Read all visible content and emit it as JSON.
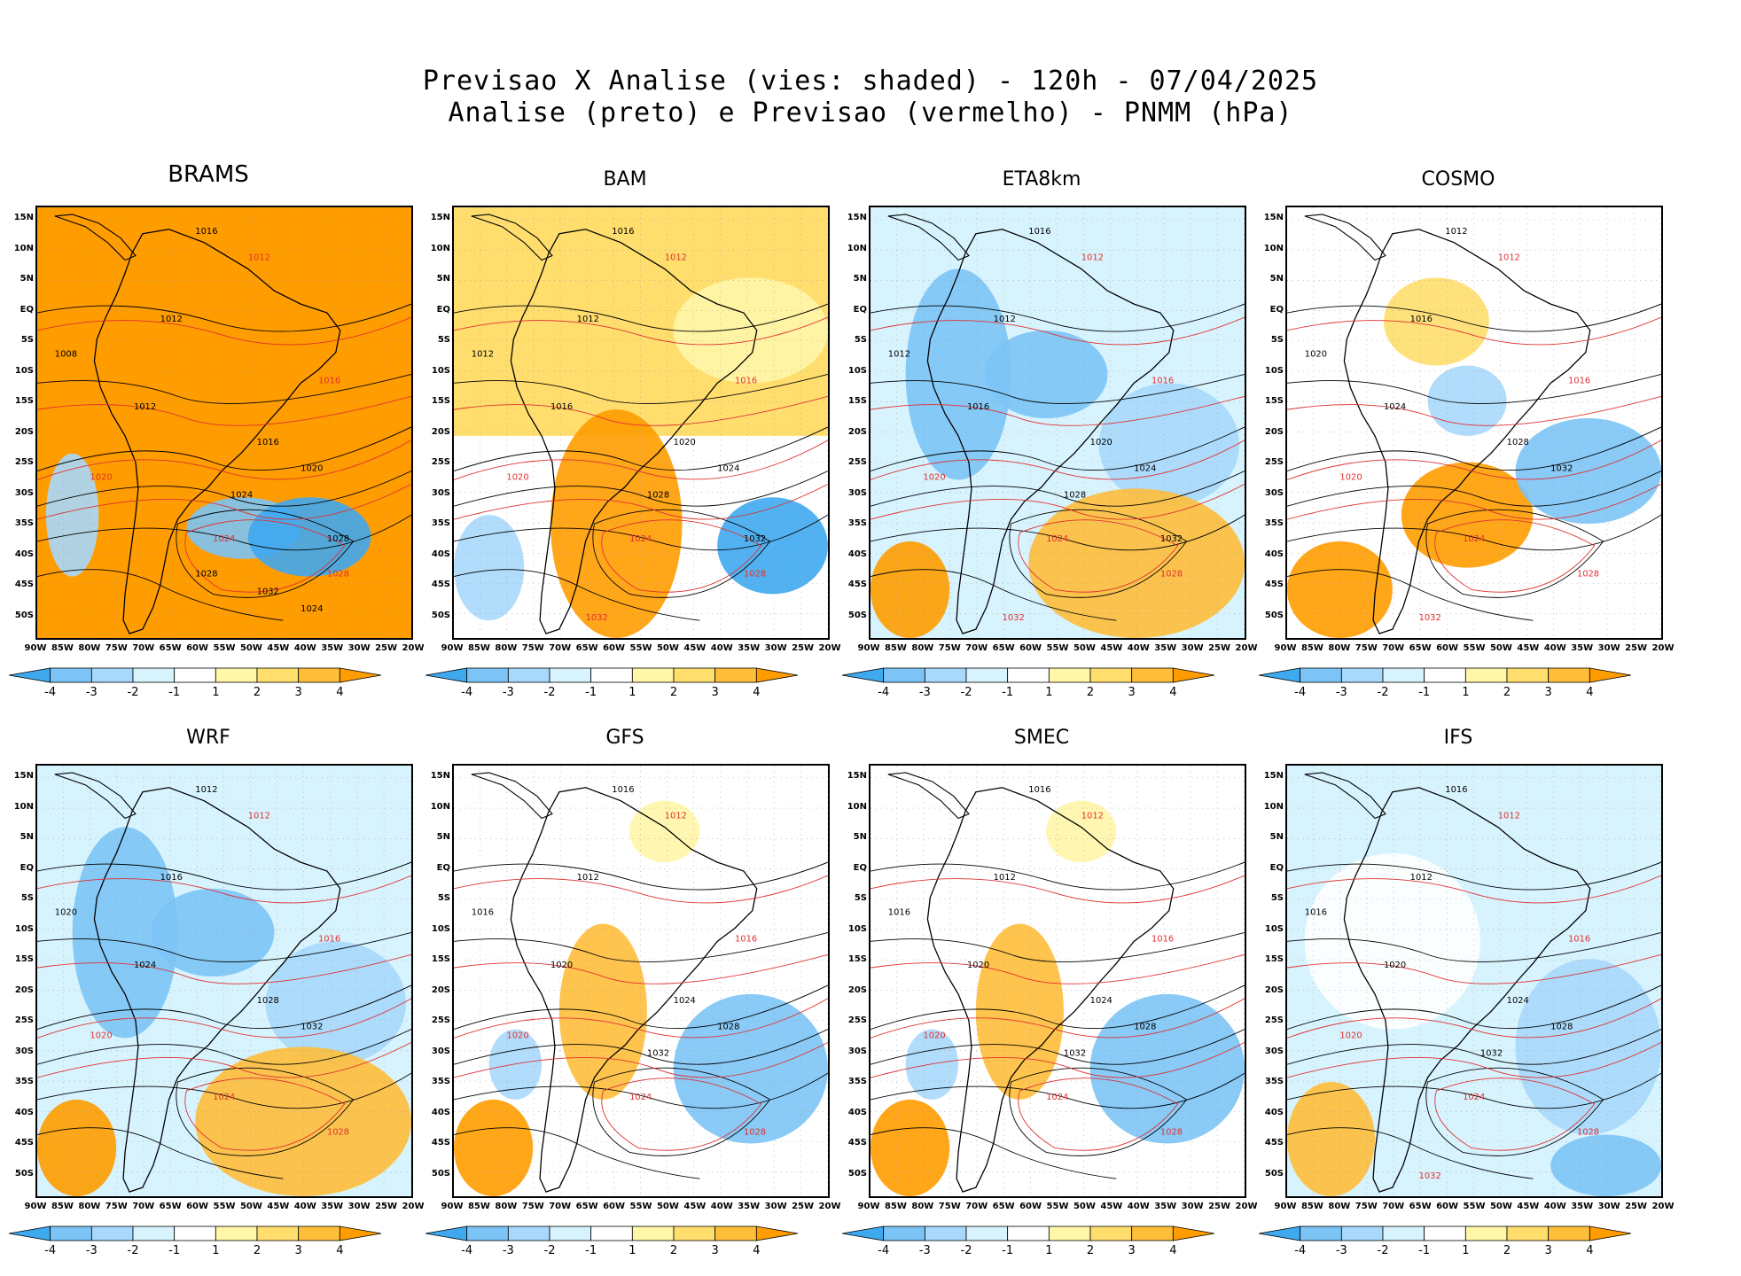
{
  "title": {
    "line1": "Previsao X Analise (vies: shaded) - 120h - 07/04/2025",
    "line2": "Analise (preto) e Previsao (vermelho) - PNMM (hPa)"
  },
  "lat_labels": [
    "15N",
    "10N",
    "5N",
    "EQ",
    "5S",
    "10S",
    "15S",
    "20S",
    "25S",
    "30S",
    "35S",
    "40S",
    "45S",
    "50S"
  ],
  "lon_labels": [
    "90W",
    "85W",
    "80W",
    "75W",
    "70W",
    "65W",
    "60W",
    "55W",
    "50W",
    "45W",
    "40W",
    "35W",
    "30W",
    "25W",
    "20W"
  ],
  "colorbar": {
    "labels": [
      "-4",
      "-3",
      "-2",
      "-1",
      "1",
      "2",
      "3",
      "4"
    ],
    "colors": [
      "#3fa9f0",
      "#7cc4f6",
      "#a8d8fb",
      "#d7f3fe",
      "#ffffff",
      "#fff6a8",
      "#ffde6e",
      "#ffbe3a",
      "#ff9c00"
    ]
  },
  "colors": {
    "analysis_contour": "#000000",
    "forecast_contour": "#e03030"
  },
  "panels": [
    {
      "name": "BRAMS",
      "bias": "warm-strong",
      "black_labels": [
        "1016",
        "1012",
        "1008",
        "1012",
        "1016",
        "1020",
        "1024",
        "1028",
        "1032",
        "1028",
        "1024"
      ],
      "red_labels": [
        "1012",
        "1016",
        "1020",
        "1024",
        "1028"
      ]
    },
    {
      "name": "BAM",
      "bias": "warm",
      "black_labels": [
        "1016",
        "1012",
        "1012",
        "1016",
        "1020",
        "1024",
        "1028",
        "1032"
      ],
      "red_labels": [
        "1012",
        "1016",
        "1020",
        "1024",
        "1028",
        "1032"
      ]
    },
    {
      "name": "ETA8km",
      "bias": "cold",
      "black_labels": [
        "1016",
        "1012",
        "1012",
        "1016",
        "1020",
        "1024",
        "1028",
        "1032"
      ],
      "red_labels": [
        "1012",
        "1016",
        "1020",
        "1024",
        "1028",
        "1032"
      ]
    },
    {
      "name": "COSMO",
      "bias": "mixed",
      "black_labels": [
        "1012",
        "1016",
        "1020",
        "1024",
        "1028",
        "1032"
      ],
      "red_labels": [
        "1012",
        "1016",
        "1020",
        "1024",
        "1028",
        "1032"
      ]
    },
    {
      "name": "WRF",
      "bias": "cold",
      "black_labels": [
        "1012",
        "1016",
        "1020",
        "1024",
        "1028",
        "1032"
      ],
      "red_labels": [
        "1012",
        "1016",
        "1020",
        "1024",
        "1028"
      ]
    },
    {
      "name": "GFS",
      "bias": "mixed-cold",
      "black_labels": [
        "1016",
        "1012",
        "1016",
        "1020",
        "1024",
        "1028",
        "1032"
      ],
      "red_labels": [
        "1012",
        "1016",
        "1020",
        "1024",
        "1028"
      ]
    },
    {
      "name": "SMEC",
      "bias": "mixed-cold",
      "black_labels": [
        "1016",
        "1012",
        "1016",
        "1020",
        "1024",
        "1028",
        "1032"
      ],
      "red_labels": [
        "1012",
        "1016",
        "1020",
        "1024",
        "1028"
      ]
    },
    {
      "name": "IFS",
      "bias": "cold-light",
      "black_labels": [
        "1016",
        "1012",
        "1016",
        "1020",
        "1024",
        "1028",
        "1032"
      ],
      "red_labels": [
        "1012",
        "1016",
        "1020",
        "1024",
        "1028",
        "1032"
      ]
    }
  ]
}
